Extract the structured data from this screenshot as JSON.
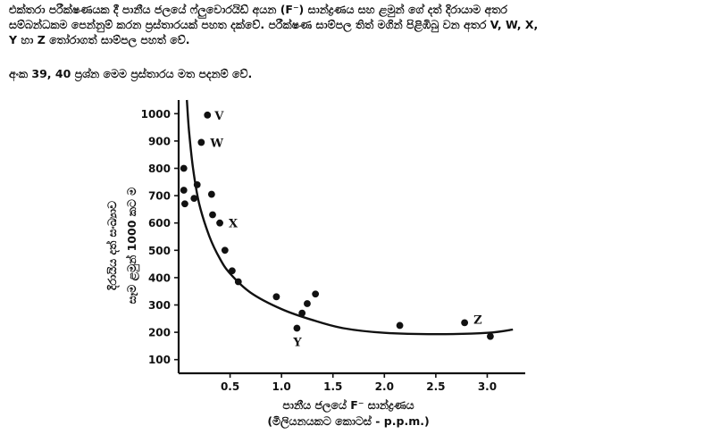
{
  "intro": {
    "line1": "එක්තරා පරීක්ෂණයක දී පානීය ජලයේ ෆ්ලුවොරයිඩ් අයන (F⁻) සාන්ද්‍රණය සහ ළමුන් ගේ දත් දිරායාම අතර",
    "line2": "සම්බන්ධකම පෙන්නුම් කරන ප්‍රස්තාරයක් පහත දක්වේ.  පරීක්ෂණ සාම්පල තිත් මගින් පිළිඹිබු වන අතර V, W, X,",
    "line3": "Y හා Z තෝරාගත් සාම්පල පහත් වේ."
  },
  "note": "අංක 39, 40 ප්‍රශ්න මෙම ප්‍රස්තාරය මත පදනම් වේ.",
  "chart_data": {
    "type": "scatter",
    "xlabel": "පානීය ජලයේ F⁻ සාන්ද්‍රණය",
    "xlabel_sub": "(මිලියනයකට කොටස් - p.p.m.)",
    "ylabel": "දිරායිය දත් සංඛ්‍යාව",
    "ylabel_sub": "සෑම ළමුන් 1000 කට ම",
    "x_ticks": [
      "0.5",
      "1.0",
      "1.5",
      "2.0",
      "2.5",
      "3.0"
    ],
    "y_ticks": [
      "100",
      "200",
      "300",
      "400",
      "500",
      "600",
      "700",
      "800",
      "900",
      "1000"
    ],
    "xlim": [
      0,
      3.3
    ],
    "ylim": [
      50,
      1050
    ],
    "grid": false,
    "points": [
      {
        "x": 0.05,
        "y": 800
      },
      {
        "x": 0.05,
        "y": 720
      },
      {
        "x": 0.06,
        "y": 670
      },
      {
        "x": 0.15,
        "y": 690
      },
      {
        "x": 0.18,
        "y": 740
      },
      {
        "x": 0.22,
        "y": 895
      },
      {
        "x": 0.28,
        "y": 995
      },
      {
        "x": 0.32,
        "y": 705
      },
      {
        "x": 0.33,
        "y": 630
      },
      {
        "x": 0.4,
        "y": 600
      },
      {
        "x": 0.45,
        "y": 500
      },
      {
        "x": 0.52,
        "y": 425
      },
      {
        "x": 0.58,
        "y": 385
      },
      {
        "x": 0.95,
        "y": 330
      },
      {
        "x": 1.15,
        "y": 215
      },
      {
        "x": 1.2,
        "y": 270
      },
      {
        "x": 1.25,
        "y": 305
      },
      {
        "x": 1.33,
        "y": 340
      },
      {
        "x": 2.15,
        "y": 225
      },
      {
        "x": 2.78,
        "y": 235
      },
      {
        "x": 3.03,
        "y": 185
      }
    ],
    "labeled_points": [
      {
        "label": "V",
        "x": 0.28,
        "y": 995
      },
      {
        "label": "W",
        "x": 0.22,
        "y": 895
      },
      {
        "label": "X",
        "x": 0.4,
        "y": 600
      },
      {
        "label": "Y",
        "x": 1.15,
        "y": 215
      },
      {
        "label": "Z",
        "x": 2.78,
        "y": 235
      }
    ],
    "trend_curve": [
      {
        "x": 0.08,
        "y": 1050
      },
      {
        "x": 0.1,
        "y": 940
      },
      {
        "x": 0.14,
        "y": 800
      },
      {
        "x": 0.2,
        "y": 670
      },
      {
        "x": 0.3,
        "y": 550
      },
      {
        "x": 0.4,
        "y": 470
      },
      {
        "x": 0.5,
        "y": 415
      },
      {
        "x": 0.7,
        "y": 345
      },
      {
        "x": 1.0,
        "y": 285
      },
      {
        "x": 1.3,
        "y": 245
      },
      {
        "x": 1.6,
        "y": 215
      },
      {
        "x": 2.0,
        "y": 198
      },
      {
        "x": 2.5,
        "y": 193
      },
      {
        "x": 3.0,
        "y": 198
      },
      {
        "x": 3.25,
        "y": 210
      }
    ]
  }
}
